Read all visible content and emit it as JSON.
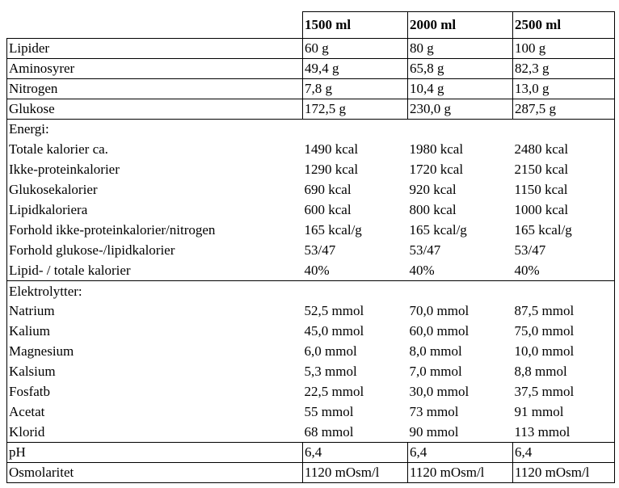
{
  "header": [
    "",
    "1500 ml",
    "2000 ml",
    "2500 ml"
  ],
  "top_rows": [
    [
      "Lipider",
      "60 g",
      "80 g",
      "100 g"
    ],
    [
      "Aminosyrer",
      "49,4 g",
      "65,8 g",
      "82,3 g"
    ],
    [
      "Nitrogen",
      "7,8 g",
      "10,4 g",
      "13,0 g"
    ],
    [
      "Glukose",
      "172,5 g",
      "230,0 g",
      "287,5 g"
    ]
  ],
  "energy": {
    "title": "Energi:",
    "rows": [
      [
        "Totale kalorier ca.",
        "1490 kcal",
        "1980 kcal",
        "2480 kcal"
      ],
      [
        "Ikke-proteinkalorier",
        "1290 kcal",
        "1720 kcal",
        "2150 kcal"
      ],
      [
        "Glukosekalorier",
        "690 kcal",
        "920 kcal",
        "1150 kcal"
      ],
      [
        "Lipidkaloriera",
        "600 kcal",
        "800 kcal",
        "1000 kcal"
      ],
      [
        "Forhold ikke-proteinkalorier/nitrogen",
        "165 kcal/g",
        "165 kcal/g",
        "165 kcal/g"
      ],
      [
        "Forhold glukose-/lipidkalorier",
        "53/47",
        "53/47",
        "53/47"
      ],
      [
        "Lipid- / totale kalorier",
        "40%",
        "40%",
        "40%"
      ]
    ]
  },
  "electrolytes": {
    "title": "Elektrolytter:",
    "rows": [
      [
        "Natrium",
        "52,5 mmol",
        "70,0 mmol",
        "87,5 mmol"
      ],
      [
        "Kalium",
        "45,0 mmol",
        "60,0 mmol",
        "75,0 mmol"
      ],
      [
        "Magnesium",
        "6,0 mmol",
        "8,0 mmol",
        "10,0 mmol"
      ],
      [
        "Kalsium",
        "5,3 mmol",
        "7,0 mmol",
        "8,8 mmol"
      ],
      [
        "Fosfatb",
        "22,5 mmol",
        "30,0 mmol",
        "37,5 mmol"
      ],
      [
        "Acetat",
        "55 mmol",
        "73 mmol",
        "91 mmol"
      ],
      [
        "Klorid",
        "68 mmol",
        "90 mmol",
        "113 mmol"
      ]
    ]
  },
  "bottom_rows": [
    [
      "pH",
      "6,4",
      "6,4",
      "6,4"
    ],
    [
      "Osmolaritet",
      "1120 mOsm/l",
      "1120 mOsm/l",
      "1120 mOsm/l"
    ]
  ]
}
